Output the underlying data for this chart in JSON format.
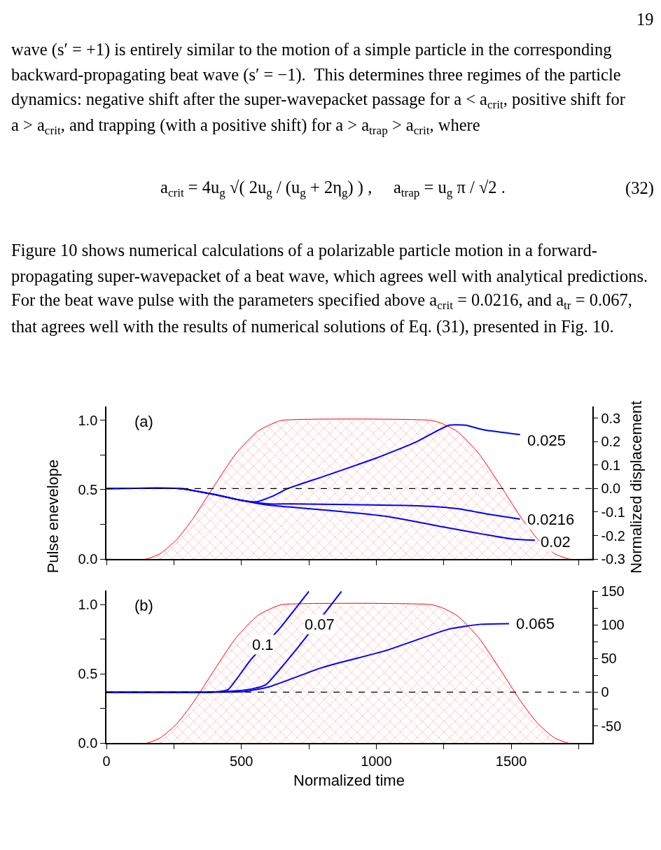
{
  "chart_data": [
    {
      "type": "line",
      "title": "(a)",
      "ylabel": "Pulse enevelope",
      "y2label": "Normalized displacement",
      "annotations": [
        "19",
        "wave (s′ = +1) is entirely similar to the motion of a simple particle in the corresponding",
        "backward-propagating beat wave (s′ = −1).  This determines three regimes of the particle",
        "dynamics: negative shift after the super-wavepacket passage for a < a$_{crit}$, positive shift for",
        "a > a$_{crit}$, and trapping (with a positive shift) for a > a$_{trap}$ > a$_{crit}$, where",
        "a$_{crit}$ = 4u$_{g}$ √( 2u$_{g}$ / (u$_{g}$ + 2η$_{g}$) ) ,     a$_{trap}$ = u$_{g}$ π / √2 .",
        "(32)",
        "Figure 10 shows numerical calculations of a polarizable particle motion in a forward-",
        "propagating super-wavepacket of a beat wave, which agrees well with analytical predictions.",
        "For the beat wave pulse with the parameters specified above a$_{crit}$ = 0.0216, and a$_{tr}$ = 0.067,",
        "that agrees well with the results of numerical solutions of Eq. (31), presented in Fig. 10."
      ],
      "xlim": [
        0,
        1800
      ],
      "xticks": [
        0,
        {
          "value": 250,
          "label": null
        },
        500,
        {
          "value": 750,
          "label": null
        },
        1000,
        {
          "value": 1250,
          "label": null
        },
        1500,
        {
          "value": 1750,
          "label": null
        }
      ],
      "ylim": [
        0,
        1.1
      ],
      "yticks": [
        {
          "value": 0,
          "label": "0.0"
        },
        {
          "value": 0.25,
          "label": null
        },
        {
          "value": 0.5,
          "label": "0.5"
        },
        {
          "value": 0.75,
          "label": null
        },
        {
          "value": 1,
          "label": "1.0"
        }
      ],
      "y2lim": [
        -0.3,
        0.35
      ],
      "y2ticks": [
        {
          "value": -0.3,
          "label": "-0.3"
        },
        {
          "value": -0.2,
          "label": "-0.2"
        },
        {
          "value": -0.1,
          "label": "-0.1"
        },
        {
          "value": 0,
          "label": "0.0"
        },
        {
          "value": 0.1,
          "label": "0.1"
        },
        {
          "value": 0.2,
          "label": "0.2"
        },
        {
          "value": 0.3,
          "label": "0.3"
        }
      ],
      "tick_labels": "y",
      "legend": false,
      "marker": "none",
      "ref_lines": [
        {
          "axis": "y2",
          "value": 0,
          "color": "#000000",
          "line_style": "dashed"
        }
      ],
      "series": [
        {
          "type": "area",
          "color": "#ff0000",
          "x": [
            0,
            146,
            200,
            260,
            320,
            400,
            480,
            560,
            620,
            650,
            1200,
            1240,
            1300,
            1380,
            1460,
            1540,
            1600,
            1660,
            1716,
            1800
          ],
          "values": [
            0,
            0,
            0.04,
            0.14,
            0.29,
            0.53,
            0.76,
            0.92,
            0.98,
            1,
            1,
            0.98,
            0.92,
            0.76,
            0.53,
            0.29,
            0.14,
            0.04,
            0,
            0
          ]
        },
        {
          "name": "0.025",
          "color": "#0000ff",
          "axis": "y2",
          "x": [
            0,
            275,
            400,
            500,
            556,
            610,
            672,
            800,
            1000,
            1150,
            1270,
            1330,
            1400,
            1533
          ],
          "values": [
            0,
            0,
            -0.025,
            -0.05,
            -0.056,
            -0.035,
            0,
            0.05,
            0.13,
            0.2,
            0.27,
            0.27,
            0.25,
            0.23
          ]
        },
        {
          "name": "0.0216",
          "color": "#0000ff",
          "axis": "y2",
          "x": [
            0,
            275,
            400,
            500,
            600,
            685,
            900,
            1155,
            1300,
            1420,
            1533
          ],
          "values": [
            0,
            0,
            -0.025,
            -0.05,
            -0.065,
            -0.065,
            -0.068,
            -0.073,
            -0.085,
            -0.11,
            -0.13
          ]
        },
        {
          "name": "0.02",
          "color": "#0000ff",
          "axis": "y2",
          "x": [
            0,
            275,
            400,
            500,
            600,
            800,
            1036,
            1270,
            1400,
            1505,
            1588
          ],
          "values": [
            0,
            0,
            -0.025,
            -0.05,
            -0.07,
            -0.09,
            -0.118,
            -0.168,
            -0.195,
            -0.215,
            -0.22
          ]
        }
      ]
    },
    {
      "type": "line",
      "title": "(b)",
      "xlabel": "Normalized time",
      "xlim": [
        0,
        1800
      ],
      "xticks": [
        0,
        {
          "value": 250,
          "label": null
        },
        500,
        {
          "value": 750,
          "label": null
        },
        1000,
        {
          "value": 1250,
          "label": null
        },
        1500,
        {
          "value": 1750,
          "label": null
        }
      ],
      "ylim": [
        0,
        1.1
      ],
      "yticks": [
        {
          "value": 0,
          "label": "0.0"
        },
        {
          "value": 0.25,
          "label": null
        },
        {
          "value": 0.5,
          "label": "0.5"
        },
        {
          "value": 0.75,
          "label": null
        },
        {
          "value": 1,
          "label": "1.0"
        }
      ],
      "y2lim": [
        -76,
        151
      ],
      "y2ticks": [
        -50,
        {
          "value": -25,
          "label": null
        },
        0,
        {
          "value": 25,
          "label": null
        },
        50,
        {
          "value": 75,
          "label": null
        },
        100,
        {
          "value": 125,
          "label": null
        },
        150
      ],
      "legend": false,
      "marker": "none",
      "ref_lines": [
        {
          "axis": "y2",
          "value": 0,
          "color": "#000000",
          "line_style": "dashed"
        }
      ],
      "series": [
        {
          "type": "area",
          "color": "#ff0000",
          "x": [
            0,
            146,
            200,
            260,
            320,
            400,
            480,
            560,
            620,
            650,
            1200,
            1240,
            1300,
            1380,
            1460,
            1540,
            1600,
            1660,
            1716,
            1800
          ],
          "values": [
            0,
            0,
            0.04,
            0.14,
            0.29,
            0.53,
            0.76,
            0.92,
            0.98,
            1,
            1,
            0.98,
            0.92,
            0.76,
            0.53,
            0.29,
            0.14,
            0.04,
            0,
            0
          ]
        },
        {
          "name": "0.1",
          "color": "#0000ff",
          "axis": "y2",
          "x": [
            0,
            369,
            420,
            451,
            534,
            640,
            750
          ],
          "values": [
            0,
            0,
            1,
            4,
            48,
            94,
            150
          ]
        },
        {
          "name": "0.07",
          "color": "#0000ff",
          "axis": "y2",
          "x": [
            0,
            369,
            480,
            540,
            590,
            708,
            871
          ],
          "values": [
            0,
            0,
            2,
            5,
            11,
            66,
            150
          ]
        },
        {
          "name": "0.065",
          "color": "#0000ff",
          "axis": "y2",
          "x": [
            0,
            369,
            510,
            603,
            802,
            1036,
            1270,
            1386,
            1492
          ],
          "values": [
            0,
            0,
            1,
            8,
            37,
            62,
            94,
            101,
            102
          ]
        }
      ]
    }
  ]
}
